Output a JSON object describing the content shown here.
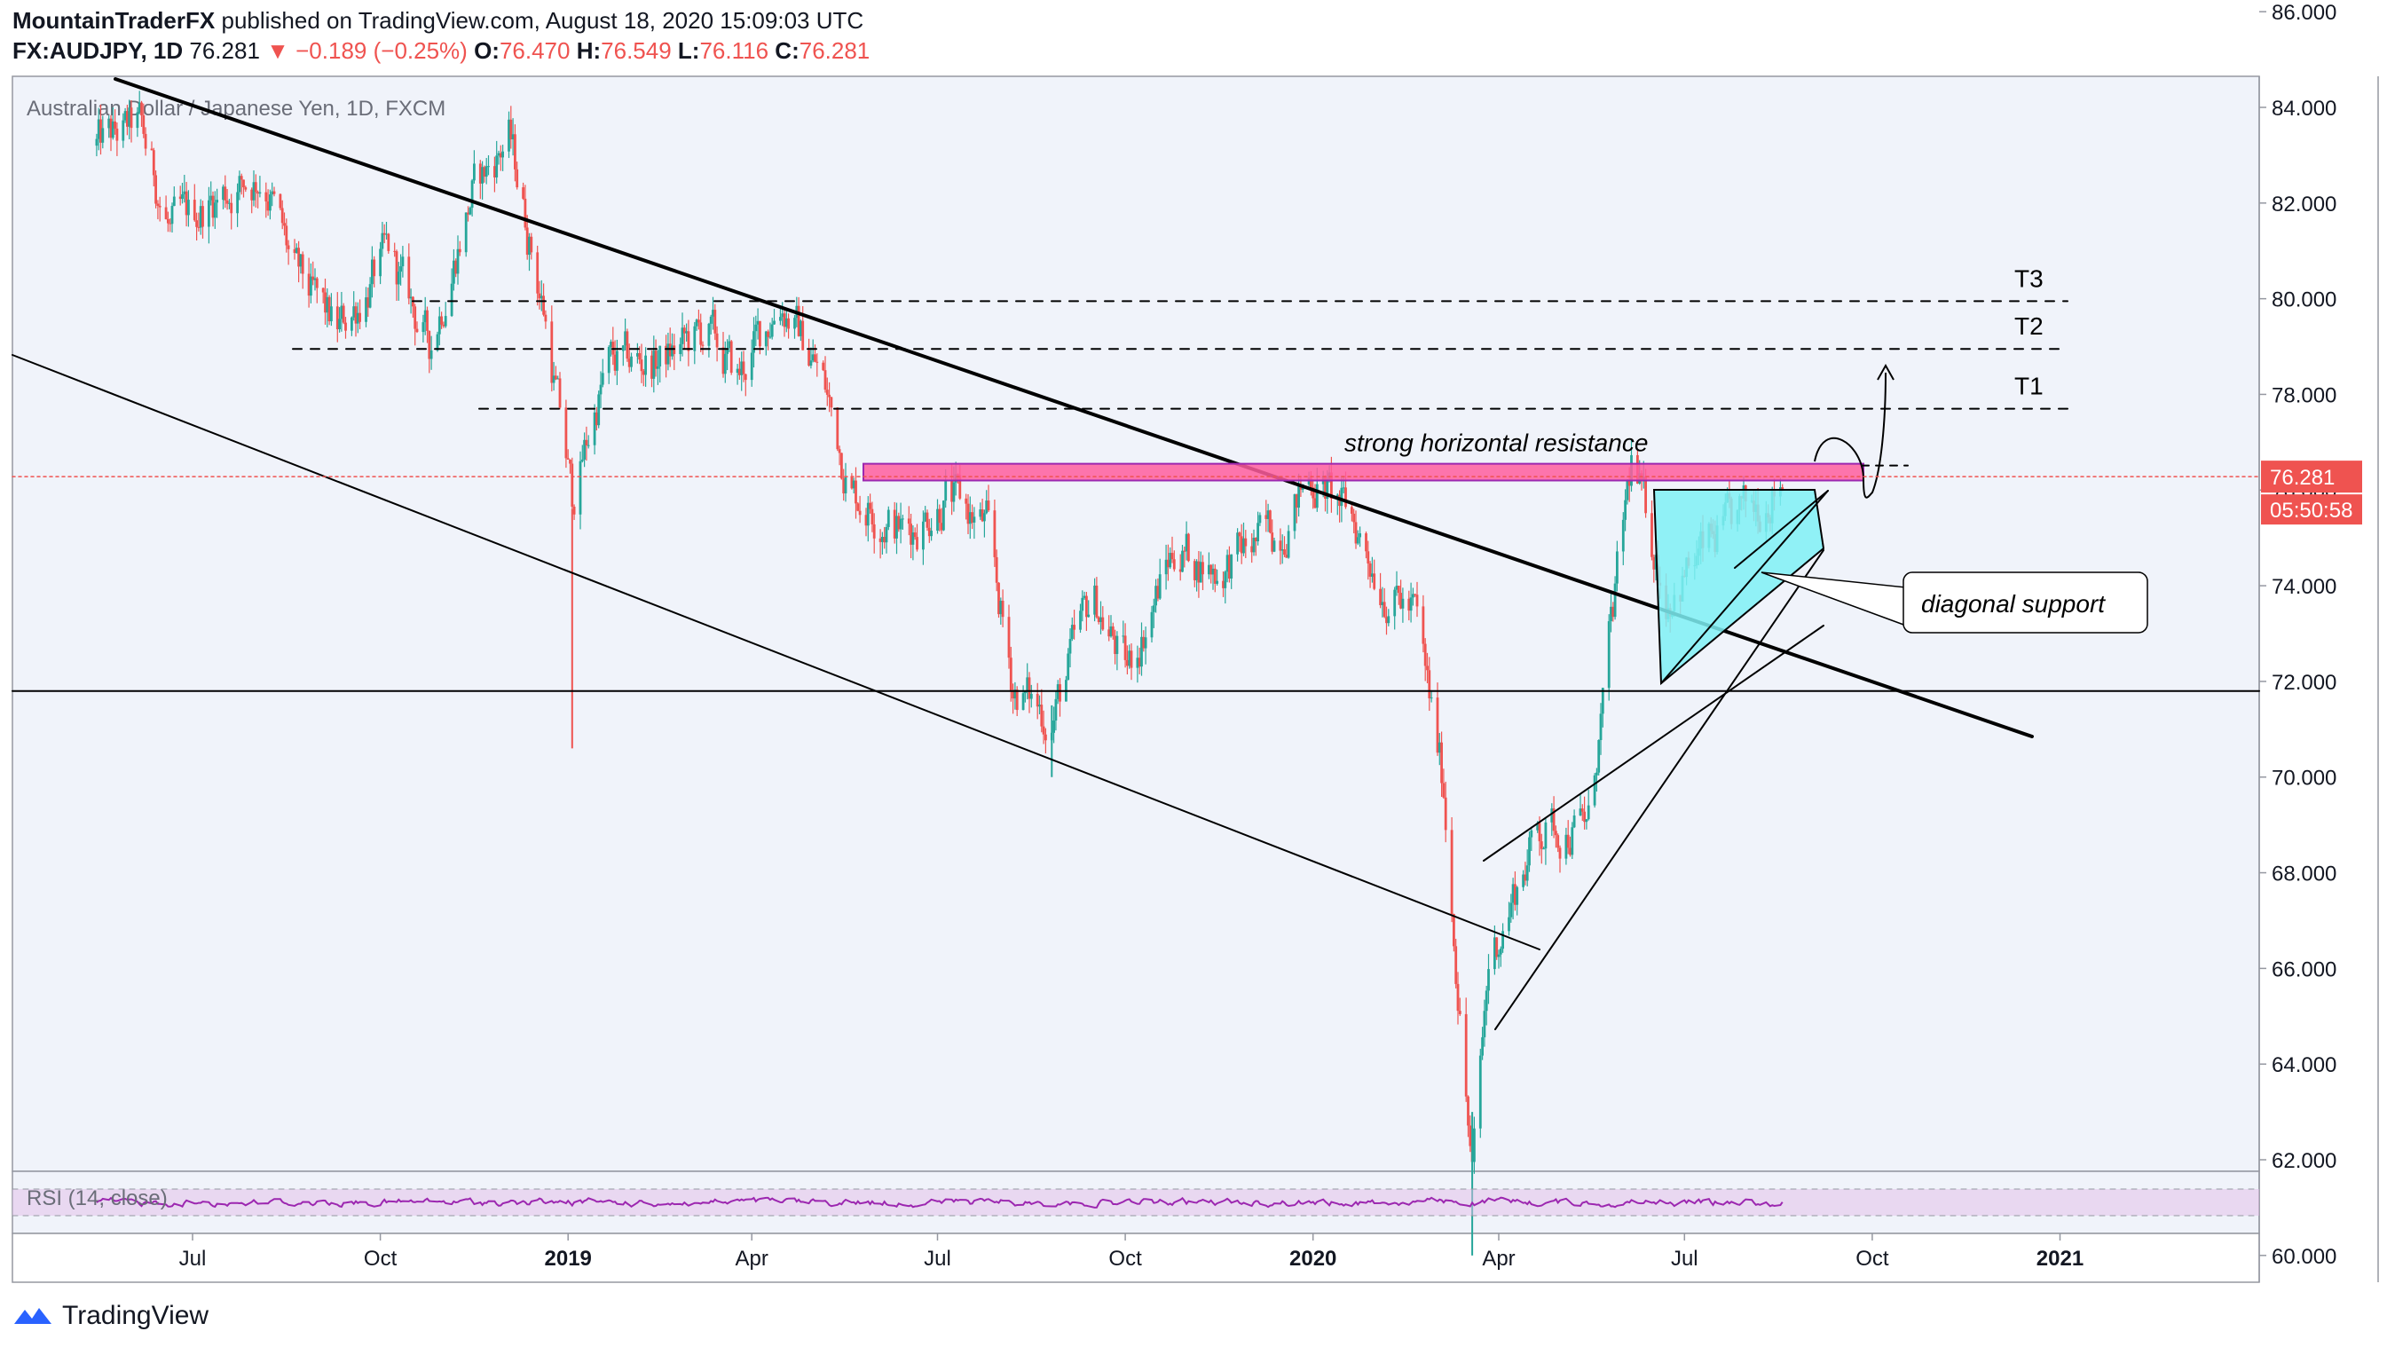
{
  "header": {
    "author": "MountainTraderFX",
    "published_text": "published on TradingView.com, August 18, 2020 15:09:03 UTC",
    "symbol": "FX:AUDJPY, 1D",
    "last": "76.281",
    "change": "−0.189 (−0.25%)",
    "o_label": "O:",
    "o_val": "76.470",
    "h_label": "H:",
    "h_val": "76.549",
    "l_label": "L:",
    "l_val": "76.116",
    "c_label": "C:",
    "c_val": "76.281"
  },
  "footer": {
    "brand": "TradingView"
  },
  "chart_data": {
    "type": "candlestick",
    "title": "Australian Dollar / Japanese Yen, 1D, FXCM",
    "y_axis": {
      "ticks": [
        "86.000",
        "84.000",
        "82.000",
        "80.000",
        "78.000",
        "76.000",
        "74.000",
        "72.000",
        "70.000",
        "68.000",
        "66.000",
        "64.000",
        "62.000",
        "60.000"
      ],
      "range": [
        60,
        86.5
      ]
    },
    "x_axis": {
      "ticks": [
        "Jul",
        "Oct",
        "2019",
        "Apr",
        "Jul",
        "Oct",
        "2020",
        "Apr",
        "Jul",
        "Oct",
        "2021"
      ]
    },
    "price_label": "76.281",
    "countdown_label": "05:50:58",
    "price_anchors": [
      {
        "d": "2018-05-15",
        "p": 83.2
      },
      {
        "d": "2018-06-05",
        "p": 83.6
      },
      {
        "d": "2018-06-20",
        "p": 81.4
      },
      {
        "d": "2018-07-15",
        "p": 82.2
      },
      {
        "d": "2018-08-05",
        "p": 82.6
      },
      {
        "d": "2018-08-20",
        "p": 80.5
      },
      {
        "d": "2018-09-10",
        "p": 79.3
      },
      {
        "d": "2018-10-05",
        "p": 80.9
      },
      {
        "d": "2018-10-25",
        "p": 79.0
      },
      {
        "d": "2018-11-15",
        "p": 82.2
      },
      {
        "d": "2018-12-03",
        "p": 83.4
      },
      {
        "d": "2018-12-20",
        "p": 79.8
      },
      {
        "d": "2019-01-03",
        "p": 75.8
      },
      {
        "d": "2019-01-20",
        "p": 78.6
      },
      {
        "d": "2019-02-15",
        "p": 78.7
      },
      {
        "d": "2019-03-10",
        "p": 79.3
      },
      {
        "d": "2019-03-25",
        "p": 78.3
      },
      {
        "d": "2019-04-15",
        "p": 80.0
      },
      {
        "d": "2019-05-05",
        "p": 78.4
      },
      {
        "d": "2019-05-20",
        "p": 76.0
      },
      {
        "d": "2019-06-15",
        "p": 75.1
      },
      {
        "d": "2019-07-05",
        "p": 75.9
      },
      {
        "d": "2019-07-25",
        "p": 75.2
      },
      {
        "d": "2019-08-07",
        "p": 71.9
      },
      {
        "d": "2019-08-26",
        "p": 71.2
      },
      {
        "d": "2019-09-15",
        "p": 73.8
      },
      {
        "d": "2019-10-02",
        "p": 72.2
      },
      {
        "d": "2019-10-25",
        "p": 74.8
      },
      {
        "d": "2019-11-15",
        "p": 74.3
      },
      {
        "d": "2019-12-15",
        "p": 75.2
      },
      {
        "d": "2019-12-31",
        "p": 76.3
      },
      {
        "d": "2020-01-20",
        "p": 75.4
      },
      {
        "d": "2020-02-05",
        "p": 74.0
      },
      {
        "d": "2020-02-20",
        "p": 73.4
      },
      {
        "d": "2020-03-05",
        "p": 69.8
      },
      {
        "d": "2020-03-19",
        "p": 61.6
      },
      {
        "d": "2020-03-27",
        "p": 66.1
      },
      {
        "d": "2020-04-20",
        "p": 68.9
      },
      {
        "d": "2020-05-15",
        "p": 69.0
      },
      {
        "d": "2020-06-05",
        "p": 76.6
      },
      {
        "d": "2020-06-22",
        "p": 73.8
      },
      {
        "d": "2020-07-15",
        "p": 74.9
      },
      {
        "d": "2020-07-31",
        "p": 75.5
      },
      {
        "d": "2020-08-18",
        "p": 76.28
      }
    ],
    "annotations": {
      "resistance_label": "strong horizontal resistance",
      "support_label": "diagonal support",
      "targets": [
        {
          "name": "T1",
          "price": 77.7
        },
        {
          "name": "T2",
          "price": 78.95
        },
        {
          "name": "T3",
          "price": 79.95
        }
      ],
      "resistance_zone": [
        76.2,
        76.55
      ],
      "horizontal_support": 71.8
    },
    "rsi": {
      "label": "RSI (14, close)"
    },
    "colors": {
      "up": "#26a69a",
      "down": "#ef5350",
      "zone": "#ff5d9e",
      "triangle": "#7ff0f5",
      "rsi": "#9c27b0"
    }
  }
}
